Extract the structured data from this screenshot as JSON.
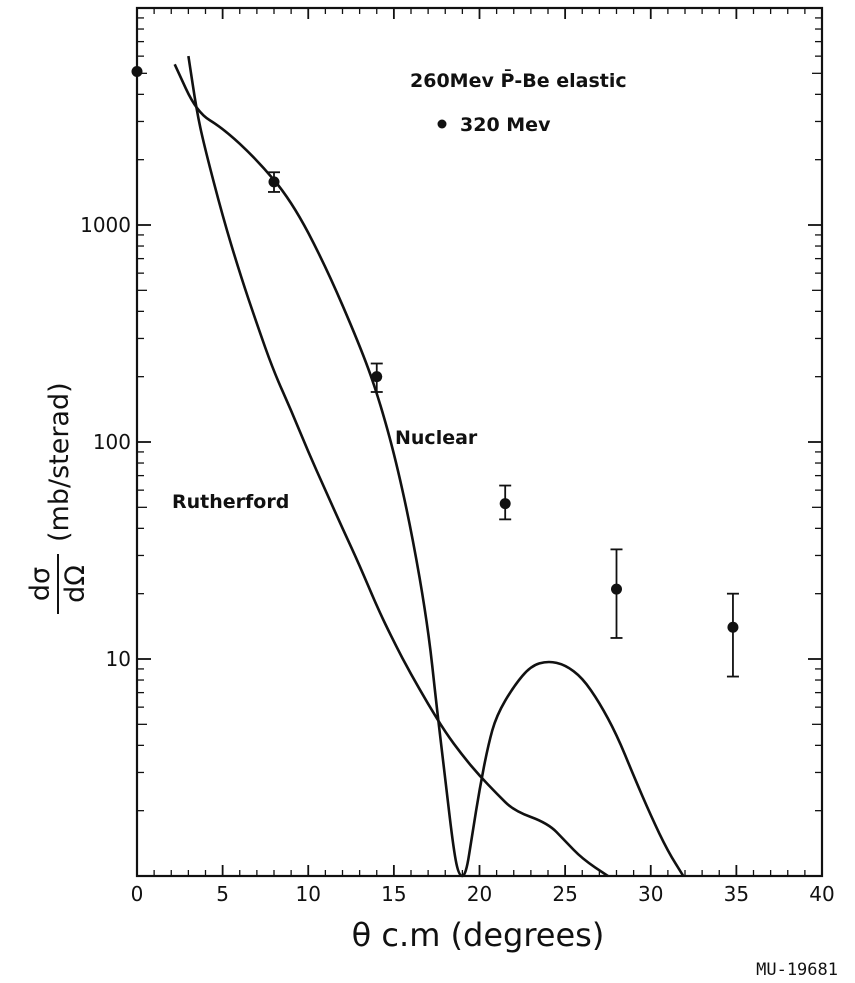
{
  "chart_data": {
    "type": "line",
    "title": "",
    "xlabel": "θ c.m (degrees)",
    "ylabel_fraction": {
      "numerator": "dσ",
      "denominator": "dΩ"
    },
    "ylabel_units": "(mb/sterad)",
    "xlim": [
      0,
      40
    ],
    "ylim": [
      1,
      10000
    ],
    "yscale": "log",
    "x_ticks": [
      0,
      5,
      10,
      15,
      20,
      25,
      30,
      35,
      40
    ],
    "x_tick_labels": [
      "0",
      "5",
      "10",
      "15",
      "20",
      "25",
      "30",
      "35",
      "40"
    ],
    "y_ticks": [
      10,
      100,
      1000
    ],
    "y_tick_labels": [
      "10",
      "100",
      "1000"
    ],
    "grid": false,
    "annotations": {
      "title_line": "260Mev P̄-Be elastic",
      "marker_legend": "320 Mev",
      "nuclear_label": "Nuclear",
      "rutherford_label": "Rutherford",
      "figure_id": "MU-19681"
    },
    "series": [
      {
        "name": "Nuclear",
        "kind": "curve",
        "points": [
          [
            2.2,
            5500
          ],
          [
            3.5,
            3300
          ],
          [
            5,
            2800
          ],
          [
            7,
            2000
          ],
          [
            9,
            1300
          ],
          [
            11,
            650
          ],
          [
            13,
            280
          ],
          [
            14,
            170
          ],
          [
            15,
            90
          ],
          [
            16,
            40
          ],
          [
            17,
            14
          ],
          [
            17.5,
            6
          ],
          [
            18,
            2.8
          ],
          [
            18.5,
            1.3
          ],
          [
            18.8,
            1
          ],
          [
            19.2,
            1
          ],
          [
            19.6,
            1.6
          ],
          [
            20,
            2.5
          ],
          [
            20.5,
            4
          ],
          [
            21,
            5.5
          ],
          [
            22,
            7.5
          ],
          [
            23,
            9.3
          ],
          [
            24,
            9.8
          ],
          [
            25,
            9.4
          ],
          [
            26,
            8.2
          ],
          [
            27,
            6.3
          ],
          [
            28,
            4.5
          ],
          [
            29,
            2.9
          ],
          [
            30,
            1.9
          ],
          [
            31,
            1.3
          ],
          [
            31.9,
            1
          ]
        ]
      },
      {
        "name": "Rutherford",
        "kind": "curve",
        "points": [
          [
            3,
            6000
          ],
          [
            3.5,
            3300
          ],
          [
            4,
            2200
          ],
          [
            5,
            1100
          ],
          [
            6,
            600
          ],
          [
            7,
            350
          ],
          [
            8,
            210
          ],
          [
            9,
            140
          ],
          [
            10,
            90
          ],
          [
            11,
            60
          ],
          [
            12,
            40
          ],
          [
            13,
            27
          ],
          [
            14,
            17.5
          ],
          [
            15,
            12
          ],
          [
            16,
            8.5
          ],
          [
            17,
            6.2
          ],
          [
            18,
            4.6
          ],
          [
            19,
            3.6
          ],
          [
            20,
            2.9
          ],
          [
            21,
            2.4
          ],
          [
            22,
            2
          ],
          [
            24,
            1.75
          ],
          [
            25,
            1.45
          ],
          [
            26,
            1.2
          ],
          [
            27.5,
            1
          ]
        ]
      },
      {
        "name": "320 Mev",
        "kind": "points",
        "points": [
          {
            "x": 0,
            "y": 5100,
            "err_low": 0,
            "err_high": 0
          },
          {
            "x": 8,
            "y": 1580,
            "err_low": 1420,
            "err_high": 1750
          },
          {
            "x": 14,
            "y": 200,
            "err_low": 170,
            "err_high": 230
          },
          {
            "x": 21.5,
            "y": 52,
            "err_low": 44,
            "err_high": 63
          },
          {
            "x": 28,
            "y": 21,
            "err_low": 12.5,
            "err_high": 32
          },
          {
            "x": 34.8,
            "y": 14,
            "err_low": 8.3,
            "err_high": 20
          }
        ]
      }
    ]
  }
}
